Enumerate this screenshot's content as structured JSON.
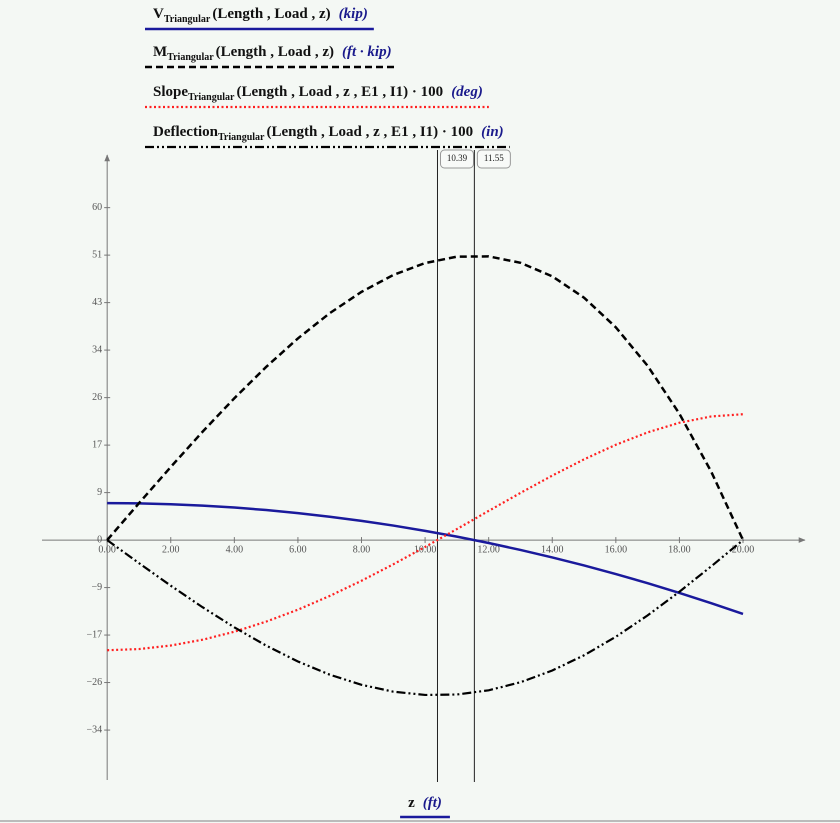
{
  "chart_data": {
    "type": "line",
    "x": [
      0,
      1,
      2,
      3,
      4,
      5,
      6,
      7,
      8,
      9,
      10,
      11,
      12,
      13,
      14,
      15,
      16,
      17,
      18,
      19,
      20
    ],
    "series": [
      {
        "name": "V",
        "subscript": "Triangular",
        "args": "(Length , Load , z)",
        "unit": "(kip)",
        "color": "#1a1a9c",
        "dash": "solid",
        "values": [
          6.67,
          6.62,
          6.47,
          6.22,
          5.87,
          5.42,
          4.87,
          4.22,
          3.47,
          2.62,
          1.67,
          0.62,
          -0.53,
          -1.78,
          -3.13,
          -4.58,
          -6.13,
          -7.78,
          -9.53,
          -11.38,
          -13.33
        ]
      },
      {
        "name": "M",
        "subscript": "Triangular",
        "args": "(Length , Load , z)",
        "unit": "(ft · kip)",
        "color": "#000000",
        "dash": "dashed",
        "values": [
          0,
          6.65,
          13.2,
          19.55,
          25.6,
          31.25,
          36.4,
          40.95,
          44.8,
          47.85,
          50.0,
          51.15,
          51.2,
          50.05,
          47.6,
          43.75,
          38.4,
          31.45,
          22.8,
          12.35,
          0
        ]
      },
      {
        "name": "Slope",
        "subscript": "Triangular",
        "args": "(Length , Load , z , E1 , I1) · 100",
        "unit": "(deg)",
        "color": "#ff2020",
        "dash": "dotted",
        "values": [
          -19.88,
          -19.67,
          -19.03,
          -17.98,
          -16.54,
          -14.72,
          -12.56,
          -10.08,
          -7.34,
          -4.37,
          -1.24,
          1.99,
          5.27,
          8.51,
          11.64,
          14.57,
          17.2,
          19.44,
          21.18,
          22.31,
          22.72
        ]
      },
      {
        "name": "Deflection",
        "subscript": "Triangular",
        "args": "(Length , Load , z , E1 , I1) · 100",
        "unit": "(in)",
        "color": "#000000",
        "dash": "dash-dot-dot",
        "values": [
          0,
          -4.16,
          -8.23,
          -12.12,
          -15.75,
          -19.04,
          -21.91,
          -24.29,
          -26.12,
          -27.36,
          -27.95,
          -27.87,
          -27.11,
          -25.66,
          -23.54,
          -20.79,
          -17.45,
          -13.59,
          -9.32,
          -4.74,
          0
        ]
      }
    ],
    "x_label": {
      "name": "z",
      "unit": "(ft)"
    },
    "xlim": [
      -2.05,
      21.95
    ],
    "ylim": [
      -43.3,
      69.5
    ],
    "xticks": [
      {
        "value": 0,
        "label": "0.00"
      },
      {
        "value": 2,
        "label": "2.00"
      },
      {
        "value": 4,
        "label": "4.00"
      },
      {
        "value": 6,
        "label": "6.00"
      },
      {
        "value": 8,
        "label": "8.00"
      },
      {
        "value": 10,
        "label": "10.00"
      },
      {
        "value": 12,
        "label": "12.00"
      },
      {
        "value": 14,
        "label": "14.00"
      },
      {
        "value": 16,
        "label": "16.00"
      },
      {
        "value": 18,
        "label": "18.00"
      },
      {
        "value": 20,
        "label": "20.00"
      }
    ],
    "yticks": [
      {
        "value": -34.29,
        "label": "−34"
      },
      {
        "value": -25.71,
        "label": "−26"
      },
      {
        "value": -17.14,
        "label": "−17"
      },
      {
        "value": -8.57,
        "label": "−9"
      },
      0,
      {
        "value": 8.57,
        "label": "9"
      },
      {
        "value": 17.14,
        "label": "17"
      },
      {
        "value": 25.71,
        "label": "26"
      },
      {
        "value": 34.29,
        "label": "34"
      },
      {
        "value": 42.86,
        "label": "43"
      },
      {
        "value": 51.43,
        "label": "51"
      },
      {
        "value": 60,
        "label": "60"
      }
    ],
    "markers": [
      10.39,
      11.55
    ]
  }
}
